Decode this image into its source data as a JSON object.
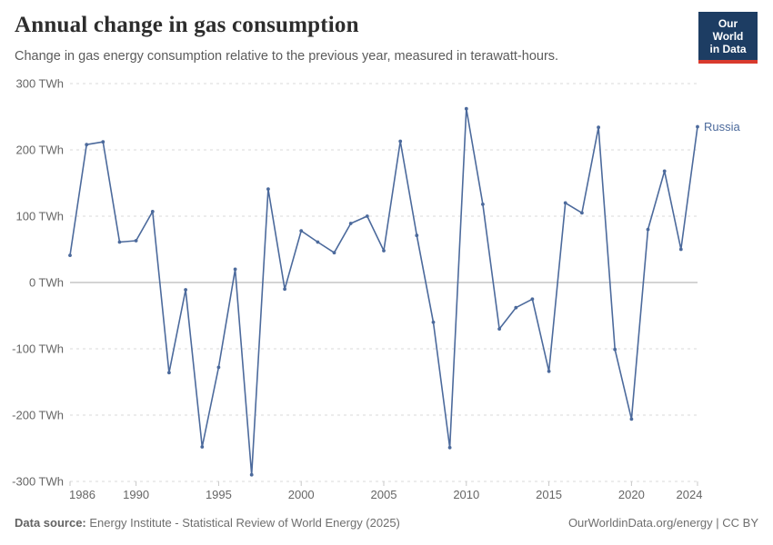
{
  "header": {
    "title": "Annual change in gas consumption",
    "subtitle": "Change in gas energy consumption relative to the previous year, measured in terawatt-hours.",
    "logo": {
      "line1": "Our World",
      "line2": "in Data"
    }
  },
  "chart_data": {
    "type": "line",
    "title": "Annual change in gas consumption",
    "unit_suffix": " TWh",
    "entity_label": "Russia",
    "x": [
      1986,
      1987,
      1988,
      1989,
      1990,
      1991,
      1992,
      1993,
      1994,
      1995,
      1996,
      1997,
      1998,
      1999,
      2000,
      2001,
      2002,
      2003,
      2004,
      2005,
      2006,
      2007,
      2008,
      2009,
      2010,
      2011,
      2012,
      2013,
      2014,
      2015,
      2016,
      2017,
      2018,
      2019,
      2020,
      2021,
      2022,
      2023,
      2024
    ],
    "series": [
      {
        "name": "Russia",
        "values": [
          41,
          208,
          212,
          61,
          63,
          107,
          -136,
          -11,
          -248,
          -128,
          20,
          -290,
          141,
          -10,
          78,
          61,
          45,
          89,
          100,
          48,
          213,
          71,
          -60,
          -249,
          262,
          118,
          -70,
          -38,
          -25,
          -134,
          120,
          105,
          234,
          -101,
          -206,
          80,
          168,
          50,
          235
        ]
      }
    ],
    "ylim": [
      -300,
      300
    ],
    "yticks": [
      300,
      200,
      100,
      0,
      -100,
      -200,
      -300
    ],
    "xticks": [
      1986,
      1990,
      1995,
      2000,
      2005,
      2010,
      2015,
      2020,
      2024
    ],
    "grid": "horizontal dashed, solid zero line, legend as end-of-line label"
  },
  "footer": {
    "datasource_label": "Data source:",
    "datasource_text": " Energy Institute - Statistical Review of World Energy (2025)",
    "right_text": "OurWorldinData.org/energy | CC BY"
  },
  "colors": {
    "line": "#4c6a9c",
    "grid": "#dadada",
    "zero_line": "#a8a8a8",
    "tick_mark": "#c8c8c8",
    "axis_text": "#666666",
    "title": "#2d2d2d",
    "subtitle": "#5b5b5b",
    "footer": "#6e6e6e",
    "logo_bg": "#1d3d63",
    "logo_red": "#d93a2d"
  }
}
